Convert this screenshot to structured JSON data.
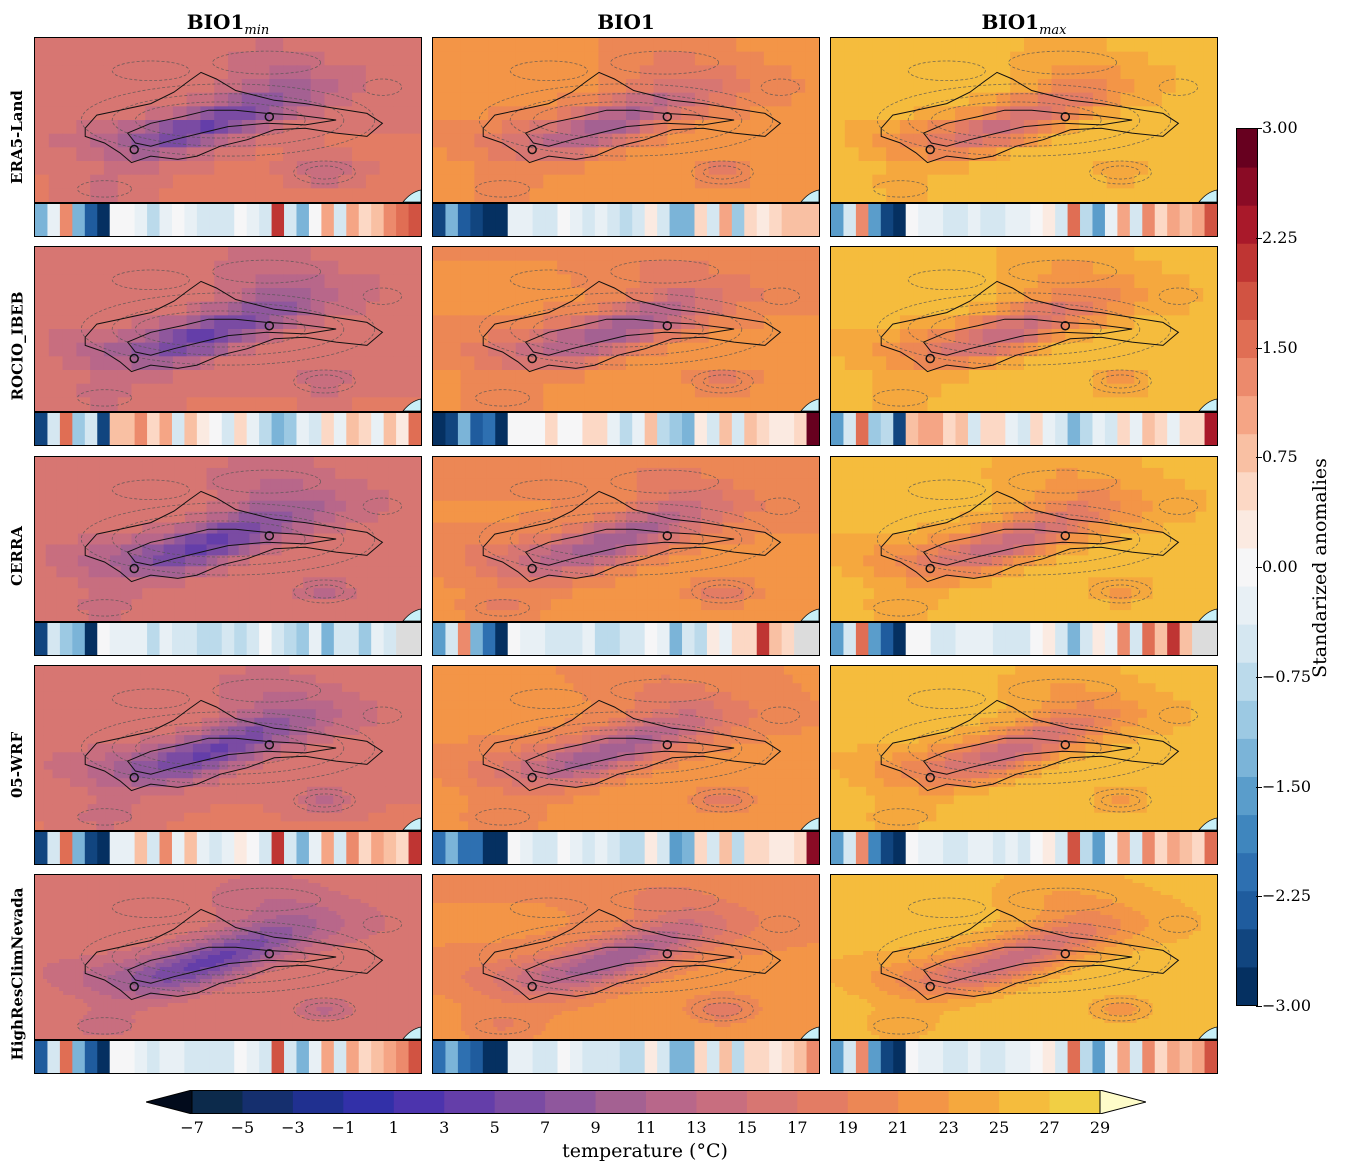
{
  "columns": [
    {
      "base": "BIO1",
      "sub": "min"
    },
    {
      "base": "BIO1",
      "sub": ""
    },
    {
      "base": "BIO1",
      "sub": "max"
    }
  ],
  "rows": [
    "ERA5-Land",
    "ROCIO_IBEB",
    "CERRA",
    "05-WRF",
    "HighResClimNevada"
  ],
  "anomaly_colorbar": {
    "label": "Standarized anomalies",
    "range": [
      -3.0,
      3.0
    ],
    "ticks": [
      "3.00",
      "2.25",
      "1.50",
      "0.75",
      "0.00",
      "−0.75",
      "−1.50",
      "−2.25",
      "−3.00"
    ],
    "colors": [
      "#053061",
      "#11457f",
      "#1f5c9e",
      "#2e70b1",
      "#3f86be",
      "#5a9dcb",
      "#7bb4d8",
      "#9cc9e3",
      "#bbdaeb",
      "#d5e7f1",
      "#e8f0f5",
      "#f6f6f7",
      "#fbeae1",
      "#fcd8c5",
      "#f9c0a3",
      "#f5a585",
      "#ec8a6c",
      "#e06e54",
      "#d15342",
      "#bf3533",
      "#a9192a",
      "#8a0b25",
      "#67001f"
    ]
  },
  "temperature_colorbar": {
    "label": "temperature (°C)",
    "ticks": [
      "−7",
      "−5",
      "−3",
      "−1",
      "1",
      "3",
      "5",
      "7",
      "9",
      "11",
      "13",
      "15",
      "17",
      "19",
      "21",
      "23",
      "25",
      "27",
      "29"
    ],
    "colors": [
      "#051f30",
      "#0c2a4b",
      "#152f6e",
      "#203090",
      "#3230a8",
      "#4c34ad",
      "#643ea9",
      "#7a4ba3",
      "#8f579d",
      "#a46192",
      "#b8678a",
      "#c86e7f",
      "#d77672",
      "#e37c64",
      "#ec8755",
      "#f39547",
      "#f5a83e",
      "#f5bc3d",
      "#f1cf44",
      "#ebe04c",
      "#e3f055"
    ],
    "under_color": "#020b1c",
    "over_color": "#fefcc9"
  },
  "chart_data": {
    "type": "heatmap",
    "anomaly_strips": [
      [
        [
          -1.3,
          -0.2,
          1.4,
          -1.4,
          -2.3,
          -3.0,
          -0.1,
          0.0,
          -0.2,
          -0.7,
          -0.2,
          -0.1,
          -0.3,
          -0.4,
          -0.4,
          -0.4,
          -0.1,
          -0.3,
          -0.4,
          2.0,
          -0.5,
          -1.3,
          -0.1,
          1.0,
          -0.4,
          1.0,
          0.6,
          0.9,
          1.2,
          1.6,
          1.9
        ],
        [
          -2.5,
          -1.2,
          -2.3,
          -2.5,
          -3.1,
          -3.1,
          -0.2,
          -0.3,
          -0.4,
          -0.6,
          -0.1,
          -0.2,
          -0.5,
          -0.3,
          -0.6,
          -0.9,
          -0.6,
          0.2,
          -0.4,
          -1.4,
          -1.4,
          0.6,
          -0.6,
          1.0,
          -1.0,
          0.6,
          0.3,
          0.4,
          0.7,
          0.9,
          0.8
        ],
        [
          -1.6,
          -0.5,
          1.3,
          -1.6,
          -2.5,
          -3.1,
          -0.1,
          -0.2,
          -0.3,
          -0.4,
          -0.4,
          -0.3,
          -0.4,
          -0.5,
          -0.2,
          -0.3,
          -0.1,
          0.2,
          -0.5,
          1.6,
          -0.8,
          -1.6,
          -0.2,
          1.1,
          -0.4,
          1.3,
          0.6,
          1.0,
          0.9,
          1.1,
          1.8
        ]
      ],
      [
        [
          -2.5,
          -0.6,
          1.6,
          -1.0,
          -0.6,
          -2.6,
          0.9,
          0.9,
          1.2,
          0.5,
          1.1,
          -0.6,
          0.9,
          0.3,
          -0.1,
          -0.5,
          0.6,
          -0.3,
          -0.7,
          -1.4,
          -1.0,
          -0.2,
          -0.6,
          0.4,
          -0.3,
          0.8,
          0.6,
          -0.2,
          0.8,
          0.3,
          1.6
        ],
        [
          -3.0,
          -2.6,
          -1.2,
          -2.4,
          -2.0,
          -3.0,
          -0.1,
          0.0,
          0.1,
          0.4,
          0.0,
          0.1,
          0.4,
          0.6,
          -0.3,
          -0.8,
          -0.3,
          0.7,
          -0.9,
          -1.0,
          -1.2,
          0.3,
          -0.4,
          0.9,
          -0.6,
          0.7,
          0.6,
          0.2,
          0.3,
          0.6,
          2.9
        ],
        [
          -1.6,
          -0.5,
          1.5,
          -1.0,
          -0.7,
          -2.5,
          0.9,
          1.0,
          1.1,
          0.6,
          0.9,
          -0.5,
          0.6,
          0.4,
          -0.2,
          -0.4,
          0.6,
          -0.2,
          -0.4,
          -1.4,
          -0.9,
          -0.3,
          -0.6,
          0.5,
          -0.3,
          0.8,
          0.6,
          -0.2,
          0.6,
          0.4,
          2.3
        ]
      ],
      [
        [
          -2.6,
          -0.5,
          -1.0,
          -1.4,
          -2.8,
          -0.1,
          -0.3,
          -0.2,
          -0.3,
          -0.7,
          -0.3,
          -0.6,
          -0.4,
          -0.7,
          -0.8,
          -0.4,
          -0.9,
          -0.6,
          -0.1,
          -0.4,
          -0.7,
          -1.0,
          -0.2,
          -1.2,
          -0.4,
          -0.5,
          -1.1,
          -0.3,
          -0.5,
          "nan",
          "nan"
        ],
        [
          -1.6,
          -0.5,
          1.3,
          -1.3,
          -2.2,
          -2.8,
          -0.1,
          -0.2,
          -0.3,
          -0.4,
          -0.5,
          -0.4,
          -0.3,
          -0.7,
          -0.9,
          -0.5,
          -0.4,
          0.1,
          -0.3,
          -1.3,
          -0.5,
          -0.8,
          0.2,
          -0.3,
          0.4,
          0.5,
          2.0,
          0.9,
          0.5,
          "nan",
          "nan"
        ],
        [
          -1.6,
          -0.5,
          1.6,
          -1.6,
          -2.3,
          -2.8,
          0.0,
          -0.1,
          -0.4,
          -0.5,
          -0.2,
          -0.3,
          -0.3,
          -0.6,
          -0.5,
          -0.5,
          -0.1,
          0.2,
          -0.6,
          -1.4,
          -0.6,
          0.2,
          -0.3,
          1.2,
          -0.4,
          1.5,
          0.7,
          2.1,
          0.7,
          "nan",
          "nan"
        ]
      ],
      [
        [
          -2.5,
          -0.5,
          1.6,
          -1.2,
          -2.5,
          -3.1,
          -0.2,
          -0.2,
          0.9,
          -0.5,
          1.2,
          -0.2,
          0.8,
          -0.3,
          -0.6,
          -0.3,
          0.3,
          -0.1,
          -0.6,
          2.0,
          -0.6,
          -1.4,
          -0.2,
          1.1,
          -0.4,
          1.3,
          0.6,
          1.0,
          0.8,
          0.5,
          2.1
        ],
        [
          -2.2,
          -1.3,
          -2.1,
          -2.2,
          -3.0,
          -3.1,
          -0.1,
          -0.3,
          -0.5,
          -0.6,
          -0.1,
          -0.3,
          -0.4,
          -0.3,
          -0.6,
          -0.9,
          -0.7,
          0.3,
          -0.6,
          -1.5,
          -1.3,
          0.6,
          -0.6,
          0.8,
          -0.9,
          0.6,
          0.5,
          0.2,
          0.3,
          0.6,
          2.5
        ],
        [
          -1.6,
          -0.5,
          1.3,
          -1.7,
          -2.6,
          -3.2,
          0.0,
          -0.2,
          -0.3,
          -0.4,
          -0.4,
          -0.3,
          -0.3,
          -0.6,
          -0.2,
          -0.4,
          -0.1,
          0.3,
          -0.5,
          1.7,
          -0.7,
          -1.6,
          -0.2,
          1.1,
          -0.5,
          1.2,
          0.5,
          1.0,
          0.8,
          0.5,
          1.6
        ]
      ],
      [
        [
          -2.3,
          -0.5,
          1.5,
          -1.3,
          -2.4,
          -3.0,
          -0.1,
          -0.1,
          -0.2,
          -0.6,
          -0.2,
          -0.2,
          -0.4,
          -0.6,
          -0.4,
          -0.4,
          -0.1,
          -0.2,
          -0.5,
          1.9,
          -0.6,
          -1.4,
          -0.2,
          1.0,
          -0.4,
          1.0,
          0.6,
          0.9,
          1.0,
          1.4,
          1.8
        ],
        [
          -2.0,
          -1.2,
          -2.2,
          -2.4,
          -3.0,
          -3.1,
          -0.2,
          -0.3,
          -0.4,
          -0.6,
          -0.1,
          -0.2,
          -0.5,
          -0.4,
          -0.6,
          -0.9,
          -0.7,
          0.2,
          -0.5,
          -1.3,
          -1.3,
          0.6,
          -0.6,
          0.9,
          -0.9,
          0.6,
          0.4,
          0.3,
          0.6,
          0.8,
          1.2
        ],
        [
          -1.6,
          -0.5,
          1.3,
          -1.6,
          -2.5,
          -3.1,
          -0.1,
          -0.2,
          -0.3,
          -0.4,
          -0.4,
          -0.3,
          -0.4,
          -0.5,
          -0.2,
          -0.3,
          -0.1,
          0.2,
          -0.5,
          1.6,
          -0.8,
          -1.6,
          -0.2,
          1.1,
          -0.4,
          1.3,
          0.6,
          1.0,
          0.9,
          1.1,
          1.8
        ]
      ]
    ]
  }
}
